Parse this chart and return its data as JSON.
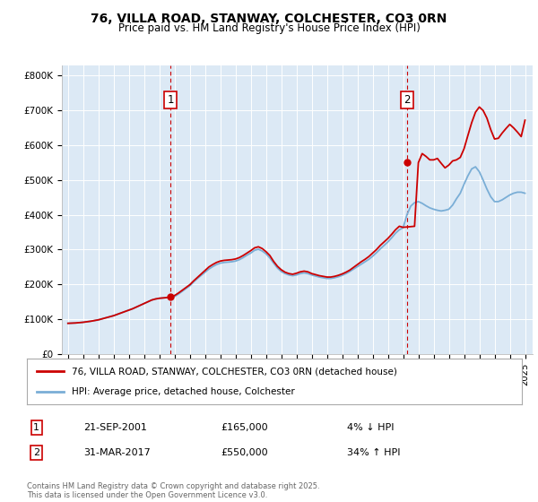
{
  "title_line1": "76, VILLA ROAD, STANWAY, COLCHESTER, CO3 0RN",
  "title_line2": "Price paid vs. HM Land Registry's House Price Index (HPI)",
  "fig_bg_color": "#ffffff",
  "plot_bg_color": "#dce9f5",
  "ylim": [
    0,
    830000
  ],
  "yticks": [
    0,
    100000,
    200000,
    300000,
    400000,
    500000,
    600000,
    700000,
    800000
  ],
  "ytick_labels": [
    "£0",
    "£100K",
    "£200K",
    "£300K",
    "£400K",
    "£500K",
    "£600K",
    "£700K",
    "£800K"
  ],
  "xlim_start": 1994.6,
  "xlim_end": 2025.5,
  "xticks": [
    1995,
    1996,
    1997,
    1998,
    1999,
    2000,
    2001,
    2002,
    2003,
    2004,
    2005,
    2006,
    2007,
    2008,
    2009,
    2010,
    2011,
    2012,
    2013,
    2014,
    2015,
    2016,
    2017,
    2018,
    2019,
    2020,
    2021,
    2022,
    2023,
    2024,
    2025
  ],
  "sale1_x": 2001.72,
  "sale1_y": 165000,
  "sale1_label": "1",
  "sale1_date": "21-SEP-2001",
  "sale1_price": "£165,000",
  "sale1_hpi": "4% ↓ HPI",
  "sale2_x": 2017.25,
  "sale2_y": 550000,
  "sale2_label": "2",
  "sale2_date": "31-MAR-2017",
  "sale2_price": "£550,000",
  "sale2_hpi": "34% ↑ HPI",
  "red_line_color": "#cc0000",
  "blue_line_color": "#7aaed6",
  "marker_color": "#cc0000",
  "vline_color": "#cc0000",
  "legend_label_red": "76, VILLA ROAD, STANWAY, COLCHESTER, CO3 0RN (detached house)",
  "legend_label_blue": "HPI: Average price, detached house, Colchester",
  "footer_text": "Contains HM Land Registry data © Crown copyright and database right 2025.\nThis data is licensed under the Open Government Licence v3.0.",
  "hpi_x": [
    1995.0,
    1995.25,
    1995.5,
    1995.75,
    1996.0,
    1996.25,
    1996.5,
    1996.75,
    1997.0,
    1997.25,
    1997.5,
    1997.75,
    1998.0,
    1998.25,
    1998.5,
    1998.75,
    1999.0,
    1999.25,
    1999.5,
    1999.75,
    2000.0,
    2000.25,
    2000.5,
    2000.75,
    2001.0,
    2001.25,
    2001.5,
    2001.75,
    2002.0,
    2002.25,
    2002.5,
    2002.75,
    2003.0,
    2003.25,
    2003.5,
    2003.75,
    2004.0,
    2004.25,
    2004.5,
    2004.75,
    2005.0,
    2005.25,
    2005.5,
    2005.75,
    2006.0,
    2006.25,
    2006.5,
    2006.75,
    2007.0,
    2007.25,
    2007.5,
    2007.75,
    2008.0,
    2008.25,
    2008.5,
    2008.75,
    2009.0,
    2009.25,
    2009.5,
    2009.75,
    2010.0,
    2010.25,
    2010.5,
    2010.75,
    2011.0,
    2011.25,
    2011.5,
    2011.75,
    2012.0,
    2012.25,
    2012.5,
    2012.75,
    2013.0,
    2013.25,
    2013.5,
    2013.75,
    2014.0,
    2014.25,
    2014.5,
    2014.75,
    2015.0,
    2015.25,
    2015.5,
    2015.75,
    2016.0,
    2016.25,
    2016.5,
    2016.75,
    2017.0,
    2017.25,
    2017.5,
    2017.75,
    2018.0,
    2018.25,
    2018.5,
    2018.75,
    2019.0,
    2019.25,
    2019.5,
    2019.75,
    2020.0,
    2020.25,
    2020.5,
    2020.75,
    2021.0,
    2021.25,
    2021.5,
    2021.75,
    2022.0,
    2022.25,
    2022.5,
    2022.75,
    2023.0,
    2023.25,
    2023.5,
    2023.75,
    2024.0,
    2024.25,
    2024.5,
    2024.75,
    2025.0
  ],
  "hpi_y": [
    88000,
    88500,
    89000,
    90000,
    91000,
    92500,
    94000,
    96000,
    98000,
    101000,
    104000,
    107000,
    110000,
    114000,
    118000,
    122000,
    126000,
    130000,
    135000,
    140000,
    145000,
    150000,
    155000,
    158000,
    160000,
    161000,
    162000,
    160000,
    165000,
    172000,
    180000,
    188000,
    196000,
    207000,
    217000,
    226000,
    235000,
    244000,
    251000,
    257000,
    261000,
    263000,
    264000,
    265000,
    267000,
    271000,
    277000,
    284000,
    290000,
    298000,
    301000,
    296000,
    288000,
    276000,
    261000,
    247000,
    237000,
    231000,
    227000,
    225000,
    227000,
    231000,
    233000,
    231000,
    227000,
    224000,
    221000,
    219000,
    217000,
    217000,
    219000,
    222000,
    226000,
    231000,
    237000,
    244000,
    251000,
    258000,
    265000,
    272000,
    281000,
    291000,
    302000,
    312000,
    322000,
    334000,
    347000,
    357000,
    363000,
    400000,
    425000,
    435000,
    438000,
    433000,
    426000,
    420000,
    416000,
    413000,
    411000,
    413000,
    416000,
    428000,
    446000,
    462000,
    488000,
    512000,
    532000,
    538000,
    524000,
    500000,
    474000,
    452000,
    438000,
    438000,
    443000,
    450000,
    457000,
    462000,
    465000,
    465000,
    462000
  ],
  "red_x": [
    1995.0,
    1995.25,
    1995.5,
    1995.75,
    1996.0,
    1996.25,
    1996.5,
    1996.75,
    1997.0,
    1997.25,
    1997.5,
    1997.75,
    1998.0,
    1998.25,
    1998.5,
    1998.75,
    1999.0,
    1999.25,
    1999.5,
    1999.75,
    2000.0,
    2000.25,
    2000.5,
    2000.75,
    2001.0,
    2001.25,
    2001.5,
    2001.75,
    2002.0,
    2002.25,
    2002.5,
    2002.75,
    2003.0,
    2003.25,
    2003.5,
    2003.75,
    2004.0,
    2004.25,
    2004.5,
    2004.75,
    2005.0,
    2005.25,
    2005.5,
    2005.75,
    2006.0,
    2006.25,
    2006.5,
    2006.75,
    2007.0,
    2007.25,
    2007.5,
    2007.75,
    2008.0,
    2008.25,
    2008.5,
    2008.75,
    2009.0,
    2009.25,
    2009.5,
    2009.75,
    2010.0,
    2010.25,
    2010.5,
    2010.75,
    2011.0,
    2011.25,
    2011.5,
    2011.75,
    2012.0,
    2012.25,
    2012.5,
    2012.75,
    2013.0,
    2013.25,
    2013.5,
    2013.75,
    2014.0,
    2014.25,
    2014.5,
    2014.75,
    2015.0,
    2015.25,
    2015.5,
    2015.75,
    2016.0,
    2016.25,
    2016.5,
    2016.75,
    2017.0,
    2017.25,
    2017.5,
    2017.75,
    2018.0,
    2018.25,
    2018.5,
    2018.75,
    2019.0,
    2019.25,
    2019.5,
    2019.75,
    2020.0,
    2020.25,
    2020.5,
    2020.75,
    2021.0,
    2021.25,
    2021.5,
    2021.75,
    2022.0,
    2022.25,
    2022.5,
    2022.75,
    2023.0,
    2023.25,
    2023.5,
    2023.75,
    2024.0,
    2024.25,
    2024.5,
    2024.75,
    2025.0
  ],
  "red_y": [
    88000,
    88500,
    89000,
    90000,
    91000,
    92500,
    94000,
    96000,
    98000,
    101000,
    104000,
    107000,
    110000,
    114000,
    118000,
    122000,
    126000,
    130000,
    135000,
    140000,
    145000,
    150000,
    155000,
    158000,
    160000,
    161000,
    162000,
    165000,
    168000,
    175000,
    183000,
    191000,
    199000,
    210000,
    220000,
    230000,
    240000,
    250000,
    257000,
    263000,
    267000,
    269000,
    270000,
    271000,
    273000,
    277000,
    283000,
    290000,
    297000,
    305000,
    308000,
    303000,
    294000,
    283000,
    266000,
    252000,
    242000,
    235000,
    231000,
    229000,
    232000,
    236000,
    238000,
    236000,
    231000,
    228000,
    225000,
    223000,
    221000,
    221000,
    223000,
    226000,
    230000,
    235000,
    241000,
    249000,
    257000,
    265000,
    272000,
    280000,
    290000,
    300000,
    312000,
    322000,
    332000,
    344000,
    357000,
    367000,
    364000,
    365000,
    366000,
    367000,
    550000,
    576000,
    568000,
    558000,
    558000,
    562000,
    548000,
    535000,
    543000,
    555000,
    558000,
    565000,
    590000,
    628000,
    665000,
    695000,
    710000,
    700000,
    678000,
    645000,
    618000,
    620000,
    635000,
    648000,
    660000,
    650000,
    638000,
    625000,
    672000
  ]
}
